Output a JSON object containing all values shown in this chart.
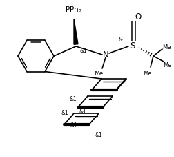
{
  "bg_color": "#ffffff",
  "line_color": "#000000",
  "lw": 1.2,
  "figsize": [
    2.52,
    2.28
  ],
  "dpi": 100,
  "xlim": [
    0,
    252
  ],
  "ylim": [
    0,
    228
  ]
}
